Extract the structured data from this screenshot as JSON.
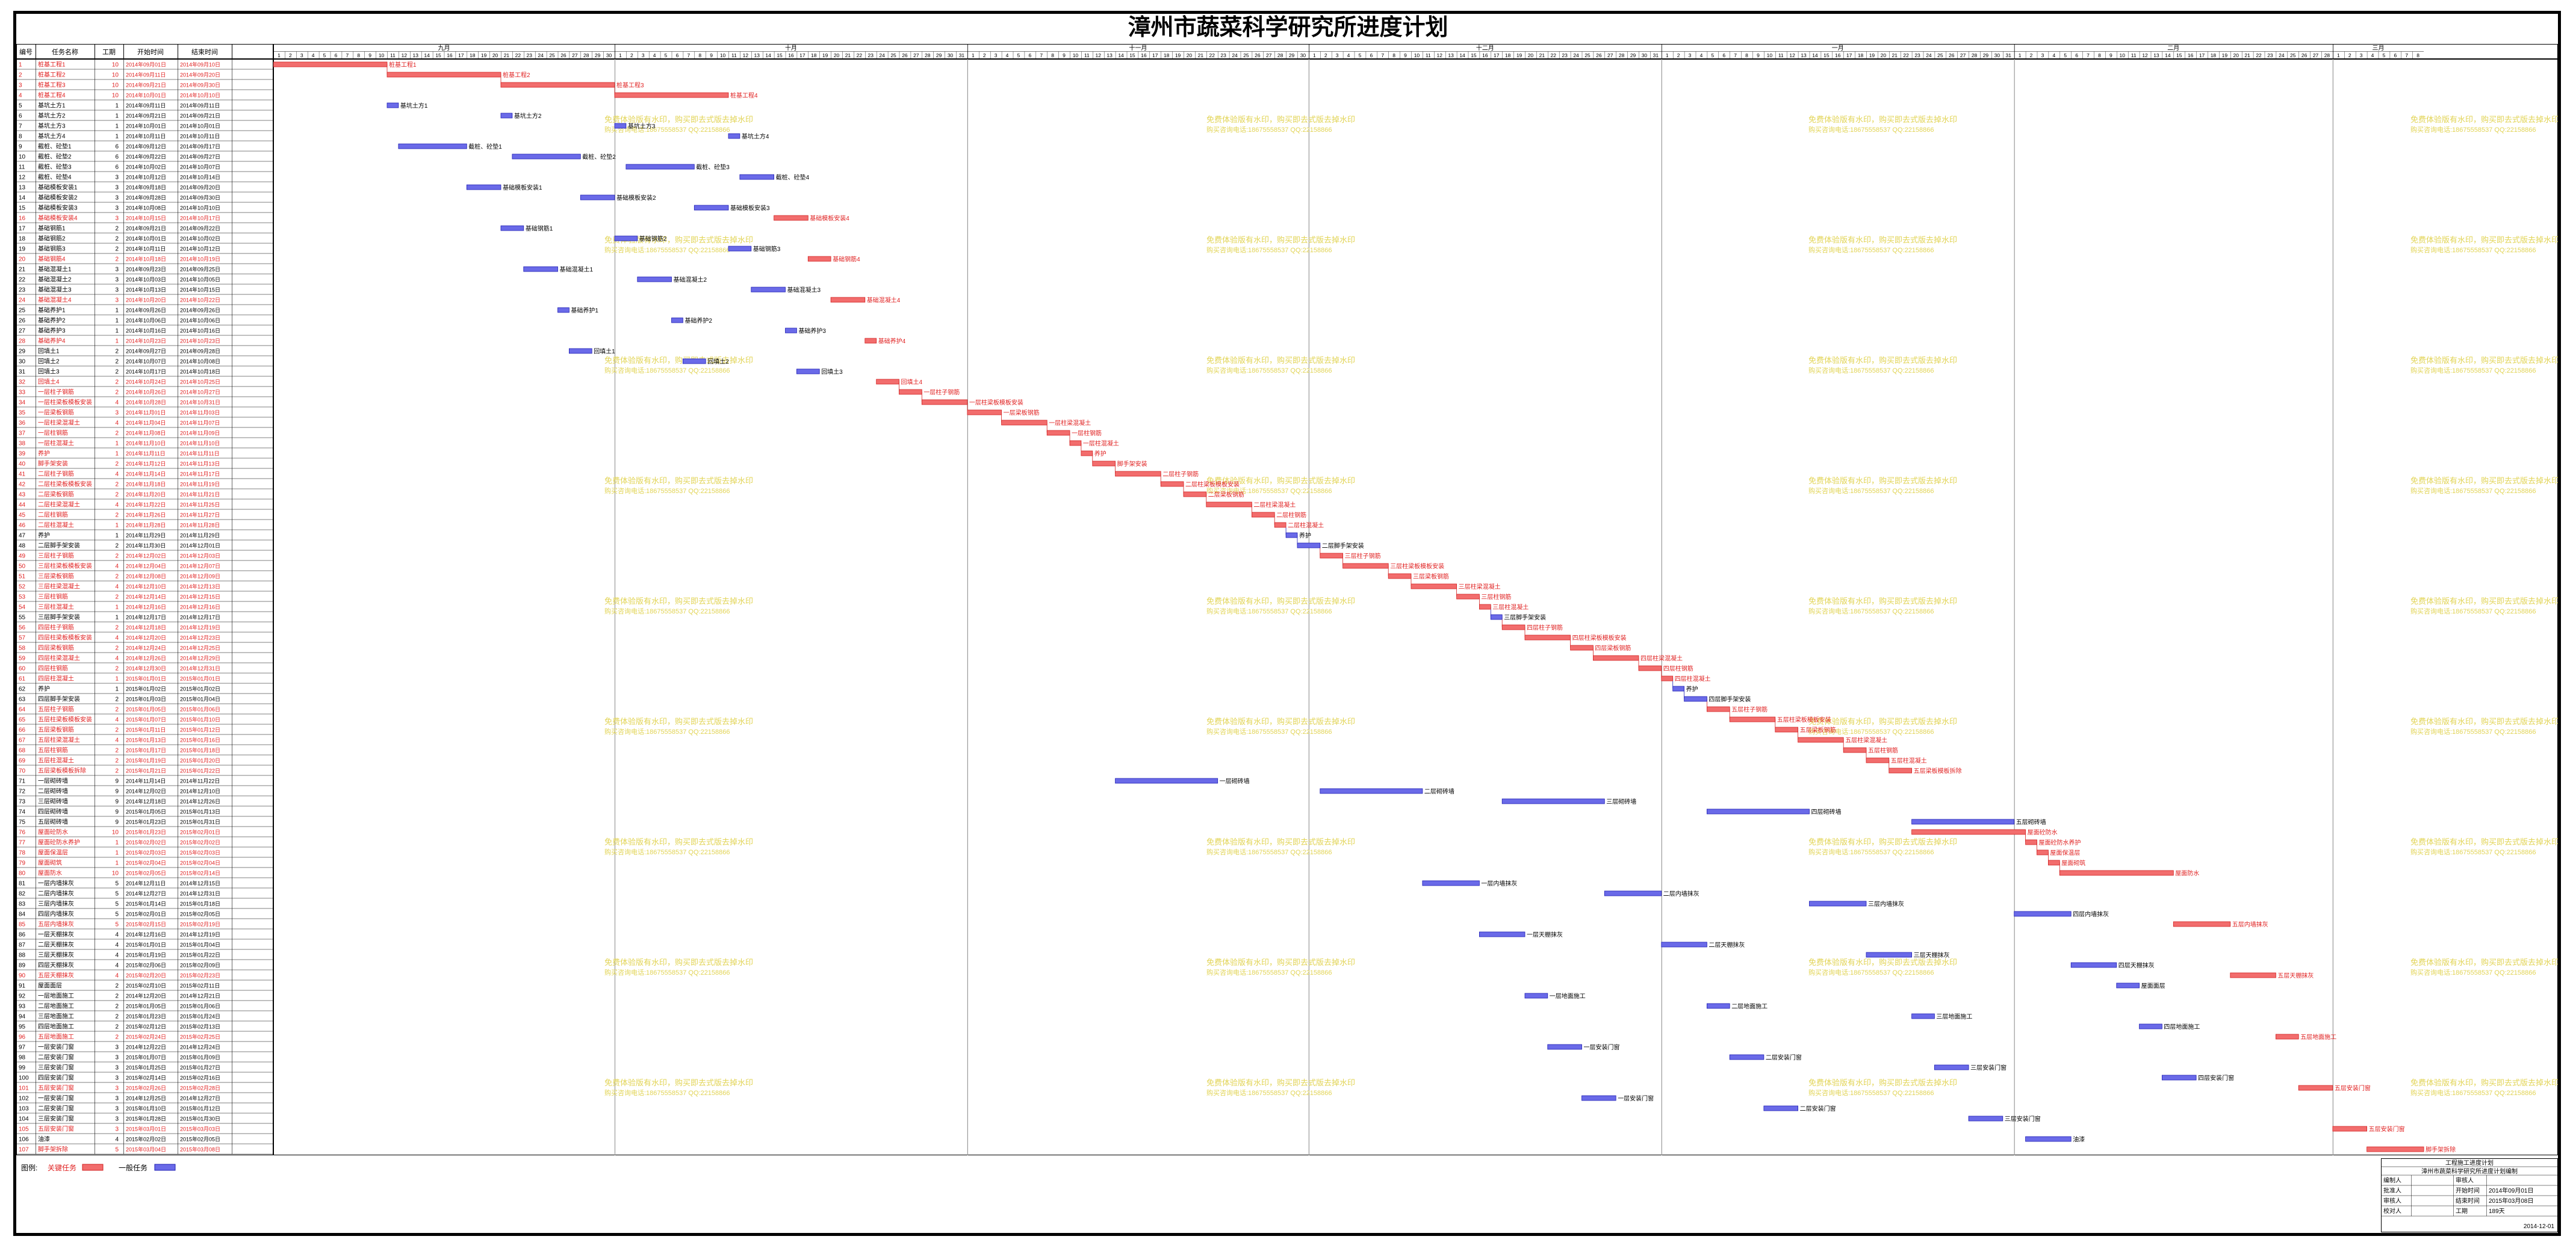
{
  "title": "漳州市蔬菜科学研究所进度计划",
  "table": {
    "columns": [
      "编号",
      "任务名称",
      "工期",
      "开始时间",
      "结束时间"
    ]
  },
  "chart_data": {
    "type": "gantt",
    "date_start": "2014-09-01",
    "months": [
      {
        "label": "九月",
        "days": 30
      },
      {
        "label": "十月",
        "days": 31
      },
      {
        "label": "十一月",
        "days": 30
      },
      {
        "label": "十二月",
        "days": 31
      },
      {
        "label": "一月",
        "days": 31
      },
      {
        "label": "二月",
        "days": 28
      },
      {
        "label": "三月",
        "days": 8
      }
    ],
    "tasks": [
      {
        "id": 1,
        "name": "桩基工程1",
        "dur": 10,
        "start": "2014年09月01日",
        "end": "2014年09月10日",
        "crit": true
      },
      {
        "id": 2,
        "name": "桩基工程2",
        "dur": 10,
        "start": "2014年09月11日",
        "end": "2014年09月20日",
        "crit": true
      },
      {
        "id": 3,
        "name": "桩基工程3",
        "dur": 10,
        "start": "2014年09月21日",
        "end": "2014年09月30日",
        "crit": true
      },
      {
        "id": 4,
        "name": "桩基工程4",
        "dur": 10,
        "start": "2014年10月01日",
        "end": "2014年10月10日",
        "crit": true
      },
      {
        "id": 5,
        "name": "基坑土方1",
        "dur": 1,
        "start": "2014年09月11日",
        "end": "2014年09月11日",
        "crit": false
      },
      {
        "id": 6,
        "name": "基坑土方2",
        "dur": 1,
        "start": "2014年09月21日",
        "end": "2014年09月21日",
        "crit": false
      },
      {
        "id": 7,
        "name": "基坑土方3",
        "dur": 1,
        "start": "2014年10月01日",
        "end": "2014年10月01日",
        "crit": false
      },
      {
        "id": 8,
        "name": "基坑土方4",
        "dur": 1,
        "start": "2014年10月11日",
        "end": "2014年10月11日",
        "crit": false
      },
      {
        "id": 9,
        "name": "截桩、砼垫1",
        "dur": 6,
        "start": "2014年09月12日",
        "end": "2014年09月17日",
        "crit": false
      },
      {
        "id": 10,
        "name": "截桩、砼垫2",
        "dur": 6,
        "start": "2014年09月22日",
        "end": "2014年09月27日",
        "crit": false
      },
      {
        "id": 11,
        "name": "截桩、砼垫3",
        "dur": 6,
        "start": "2014年10月02日",
        "end": "2014年10月07日",
        "crit": false
      },
      {
        "id": 12,
        "name": "截桩、砼垫4",
        "dur": 3,
        "start": "2014年10月12日",
        "end": "2014年10月14日",
        "crit": false
      },
      {
        "id": 13,
        "name": "基础模板安装1",
        "dur": 3,
        "start": "2014年09月18日",
        "end": "2014年09月20日",
        "crit": false
      },
      {
        "id": 14,
        "name": "基础模板安装2",
        "dur": 3,
        "start": "2014年09月28日",
        "end": "2014年09月30日",
        "crit": false
      },
      {
        "id": 15,
        "name": "基础模板安装3",
        "dur": 3,
        "start": "2014年10月08日",
        "end": "2014年10月10日",
        "crit": false
      },
      {
        "id": 16,
        "name": "基础模板安装4",
        "dur": 3,
        "start": "2014年10月15日",
        "end": "2014年10月17日",
        "crit": true
      },
      {
        "id": 17,
        "name": "基础钢筋1",
        "dur": 2,
        "start": "2014年09月21日",
        "end": "2014年09月22日",
        "crit": false
      },
      {
        "id": 18,
        "name": "基础钢筋2",
        "dur": 2,
        "start": "2014年10月01日",
        "end": "2014年10月02日",
        "crit": false
      },
      {
        "id": 19,
        "name": "基础钢筋3",
        "dur": 2,
        "start": "2014年10月11日",
        "end": "2014年10月12日",
        "crit": false
      },
      {
        "id": 20,
        "name": "基础钢筋4",
        "dur": 2,
        "start": "2014年10月18日",
        "end": "2014年10月19日",
        "crit": true
      },
      {
        "id": 21,
        "name": "基础混凝土1",
        "dur": 3,
        "start": "2014年09月23日",
        "end": "2014年09月25日",
        "crit": false
      },
      {
        "id": 22,
        "name": "基础混凝土2",
        "dur": 3,
        "start": "2014年10月03日",
        "end": "2014年10月05日",
        "crit": false
      },
      {
        "id": 23,
        "name": "基础混凝土3",
        "dur": 3,
        "start": "2014年10月13日",
        "end": "2014年10月15日",
        "crit": false
      },
      {
        "id": 24,
        "name": "基础混凝土4",
        "dur": 3,
        "start": "2014年10月20日",
        "end": "2014年10月22日",
        "crit": true
      },
      {
        "id": 25,
        "name": "基础养护1",
        "dur": 1,
        "start": "2014年09月26日",
        "end": "2014年09月26日",
        "crit": false
      },
      {
        "id": 26,
        "name": "基础养护2",
        "dur": 1,
        "start": "2014年10月06日",
        "end": "2014年10月06日",
        "crit": false
      },
      {
        "id": 27,
        "name": "基础养护3",
        "dur": 1,
        "start": "2014年10月16日",
        "end": "2014年10月16日",
        "crit": false
      },
      {
        "id": 28,
        "name": "基础养护4",
        "dur": 1,
        "start": "2014年10月23日",
        "end": "2014年10月23日",
        "crit": true
      },
      {
        "id": 29,
        "name": "回填土1",
        "dur": 2,
        "start": "2014年09月27日",
        "end": "2014年09月28日",
        "crit": false
      },
      {
        "id": 30,
        "name": "回填土2",
        "dur": 2,
        "start": "2014年10月07日",
        "end": "2014年10月08日",
        "crit": false
      },
      {
        "id": 31,
        "name": "回填土3",
        "dur": 2,
        "start": "2014年10月17日",
        "end": "2014年10月18日",
        "crit": false
      },
      {
        "id": 32,
        "name": "回填土4",
        "dur": 2,
        "start": "2014年10月24日",
        "end": "2014年10月25日",
        "crit": true
      },
      {
        "id": 33,
        "name": "一层柱子钢筋",
        "dur": 2,
        "start": "2014年10月26日",
        "end": "2014年10月27日",
        "crit": true
      },
      {
        "id": 34,
        "name": "一层柱梁板模板安装",
        "dur": 4,
        "start": "2014年10月28日",
        "end": "2014年10月31日",
        "crit": true
      },
      {
        "id": 35,
        "name": "一层梁板钢筋",
        "dur": 3,
        "start": "2014年11月01日",
        "end": "2014年11月03日",
        "crit": true
      },
      {
        "id": 36,
        "name": "一层柱梁混凝土",
        "dur": 4,
        "start": "2014年11月04日",
        "end": "2014年11月07日",
        "crit": true
      },
      {
        "id": 37,
        "name": "一层柱钢筋",
        "dur": 2,
        "start": "2014年11月08日",
        "end": "2014年11月09日",
        "crit": true
      },
      {
        "id": 38,
        "name": "一层柱混凝土",
        "dur": 1,
        "start": "2014年11月10日",
        "end": "2014年11月10日",
        "crit": true
      },
      {
        "id": 39,
        "name": "养护",
        "dur": 1,
        "start": "2014年11月11日",
        "end": "2014年11月11日",
        "crit": true
      },
      {
        "id": 40,
        "name": "脚手架安装",
        "dur": 2,
        "start": "2014年11月12日",
        "end": "2014年11月13日",
        "crit": true
      },
      {
        "id": 41,
        "name": "二层柱子钢筋",
        "dur": 4,
        "start": "2014年11月14日",
        "end": "2014年11月17日",
        "crit": true
      },
      {
        "id": 42,
        "name": "二层柱梁板模板安装",
        "dur": 2,
        "start": "2014年11月18日",
        "end": "2014年11月19日",
        "crit": true
      },
      {
        "id": 43,
        "name": "二层梁板钢筋",
        "dur": 2,
        "start": "2014年11月20日",
        "end": "2014年11月21日",
        "crit": true
      },
      {
        "id": 44,
        "name": "二层柱梁混凝土",
        "dur": 4,
        "start": "2014年11月22日",
        "end": "2014年11月25日",
        "crit": true
      },
      {
        "id": 45,
        "name": "二层柱钢筋",
        "dur": 2,
        "start": "2014年11月26日",
        "end": "2014年11月27日",
        "crit": true
      },
      {
        "id": 46,
        "name": "二层柱混凝土",
        "dur": 1,
        "start": "2014年11月28日",
        "end": "2014年11月28日",
        "crit": true
      },
      {
        "id": 47,
        "name": "养护",
        "dur": 1,
        "start": "2014年11月29日",
        "end": "2014年11月29日",
        "crit": false
      },
      {
        "id": 48,
        "name": "二层脚手架安装",
        "dur": 2,
        "start": "2014年11月30日",
        "end": "2014年12月01日",
        "crit": false
      },
      {
        "id": 49,
        "name": "三层柱子钢筋",
        "dur": 2,
        "start": "2014年12月02日",
        "end": "2014年12月03日",
        "crit": true
      },
      {
        "id": 50,
        "name": "三层柱梁板模板安装",
        "dur": 4,
        "start": "2014年12月04日",
        "end": "2014年12月07日",
        "crit": true
      },
      {
        "id": 51,
        "name": "三层梁板钢筋",
        "dur": 2,
        "start": "2014年12月08日",
        "end": "2014年12月09日",
        "crit": true
      },
      {
        "id": 52,
        "name": "三层柱梁混凝土",
        "dur": 4,
        "start": "2014年12月10日",
        "end": "2014年12月13日",
        "crit": true
      },
      {
        "id": 53,
        "name": "三层柱钢筋",
        "dur": 2,
        "start": "2014年12月14日",
        "end": "2014年12月15日",
        "crit": true
      },
      {
        "id": 54,
        "name": "三层柱混凝土",
        "dur": 1,
        "start": "2014年12月16日",
        "end": "2014年12月16日",
        "crit": true
      },
      {
        "id": 55,
        "name": "三层脚手架安装",
        "dur": 1,
        "start": "2014年12月17日",
        "end": "2014年12月17日",
        "crit": false
      },
      {
        "id": 56,
        "name": "四层柱子钢筋",
        "dur": 2,
        "start": "2014年12月18日",
        "end": "2014年12月19日",
        "crit": true
      },
      {
        "id": 57,
        "name": "四层柱梁板模板安装",
        "dur": 4,
        "start": "2014年12月20日",
        "end": "2014年12月23日",
        "crit": true
      },
      {
        "id": 58,
        "name": "四层梁板钢筋",
        "dur": 2,
        "start": "2014年12月24日",
        "end": "2014年12月25日",
        "crit": true
      },
      {
        "id": 59,
        "name": "四层柱梁混凝土",
        "dur": 4,
        "start": "2014年12月26日",
        "end": "2014年12月29日",
        "crit": true
      },
      {
        "id": 60,
        "name": "四层柱钢筋",
        "dur": 2,
        "start": "2014年12月30日",
        "end": "2014年12月31日",
        "crit": true
      },
      {
        "id": 61,
        "name": "四层柱混凝土",
        "dur": 1,
        "start": "2015年01月01日",
        "end": "2015年01月01日",
        "crit": true
      },
      {
        "id": 62,
        "name": "养护",
        "dur": 1,
        "start": "2015年01月02日",
        "end": "2015年01月02日",
        "crit": false
      },
      {
        "id": 63,
        "name": "四层脚手架安装",
        "dur": 2,
        "start": "2015年01月03日",
        "end": "2015年01月04日",
        "crit": false
      },
      {
        "id": 64,
        "name": "五层柱子钢筋",
        "dur": 2,
        "start": "2015年01月05日",
        "end": "2015年01月06日",
        "crit": true
      },
      {
        "id": 65,
        "name": "五层柱梁板模板安装",
        "dur": 4,
        "start": "2015年01月07日",
        "end": "2015年01月10日",
        "crit": true
      },
      {
        "id": 66,
        "name": "五层梁板钢筋",
        "dur": 2,
        "start": "2015年01月11日",
        "end": "2015年01月12日",
        "crit": true
      },
      {
        "id": 67,
        "name": "五层柱梁混凝土",
        "dur": 4,
        "start": "2015年01月13日",
        "end": "2015年01月16日",
        "crit": true
      },
      {
        "id": 68,
        "name": "五层柱钢筋",
        "dur": 2,
        "start": "2015年01月17日",
        "end": "2015年01月18日",
        "crit": true
      },
      {
        "id": 69,
        "name": "五层柱混凝土",
        "dur": 2,
        "start": "2015年01月19日",
        "end": "2015年01月20日",
        "crit": true
      },
      {
        "id": 70,
        "name": "五层梁板模板拆除",
        "dur": 2,
        "start": "2015年01月21日",
        "end": "2015年01月22日",
        "crit": true
      },
      {
        "id": 71,
        "name": "一层砌砖墙",
        "dur": 9,
        "start": "2014年11月14日",
        "end": "2014年11月22日",
        "crit": false
      },
      {
        "id": 72,
        "name": "二层砌砖墙",
        "dur": 9,
        "start": "2014年12月02日",
        "end": "2014年12月10日",
        "crit": false
      },
      {
        "id": 73,
        "name": "三层砌砖墙",
        "dur": 9,
        "start": "2014年12月18日",
        "end": "2014年12月26日",
        "crit": false
      },
      {
        "id": 74,
        "name": "四层砌砖墙",
        "dur": 9,
        "start": "2015年01月05日",
        "end": "2015年01月13日",
        "crit": false
      },
      {
        "id": 75,
        "name": "五层砌砖墙",
        "dur": 9,
        "start": "2015年01月23日",
        "end": "2015年01月31日",
        "crit": false
      },
      {
        "id": 76,
        "name": "屋面砼防水",
        "dur": 10,
        "start": "2015年01月23日",
        "end": "2015年02月01日",
        "crit": true
      },
      {
        "id": 77,
        "name": "屋面砼防水养护",
        "dur": 1,
        "start": "2015年02月02日",
        "end": "2015年02月02日",
        "crit": true
      },
      {
        "id": 78,
        "name": "屋面保温层",
        "dur": 1,
        "start": "2015年02月03日",
        "end": "2015年02月03日",
        "crit": true
      },
      {
        "id": 79,
        "name": "屋面砌筑",
        "dur": 1,
        "start": "2015年02月04日",
        "end": "2015年02月04日",
        "crit": true
      },
      {
        "id": 80,
        "name": "屋面防水",
        "dur": 10,
        "start": "2015年02月05日",
        "end": "2015年02月14日",
        "crit": true
      },
      {
        "id": 81,
        "name": "一层内墙抹灰",
        "dur": 5,
        "start": "2014年12月11日",
        "end": "2014年12月15日",
        "crit": false
      },
      {
        "id": 82,
        "name": "二层内墙抹灰",
        "dur": 5,
        "start": "2014年12月27日",
        "end": "2014年12月31日",
        "crit": false
      },
      {
        "id": 83,
        "name": "三层内墙抹灰",
        "dur": 5,
        "start": "2015年01月14日",
        "end": "2015年01月18日",
        "crit": false
      },
      {
        "id": 84,
        "name": "四层内墙抹灰",
        "dur": 5,
        "start": "2015年02月01日",
        "end": "2015年02月05日",
        "crit": false
      },
      {
        "id": 85,
        "name": "五层内墙抹灰",
        "dur": 5,
        "start": "2015年02月15日",
        "end": "2015年02月19日",
        "crit": true
      },
      {
        "id": 86,
        "name": "一层天棚抹灰",
        "dur": 4,
        "start": "2014年12月16日",
        "end": "2014年12月19日",
        "crit": false
      },
      {
        "id": 87,
        "name": "二层天棚抹灰",
        "dur": 4,
        "start": "2015年01月01日",
        "end": "2015年01月04日",
        "crit": false
      },
      {
        "id": 88,
        "name": "三层天棚抹灰",
        "dur": 4,
        "start": "2015年01月19日",
        "end": "2015年01月22日",
        "crit": false
      },
      {
        "id": 89,
        "name": "四层天棚抹灰",
        "dur": 4,
        "start": "2015年02月06日",
        "end": "2015年02月09日",
        "crit": false
      },
      {
        "id": 90,
        "name": "五层天棚抹灰",
        "dur": 4,
        "start": "2015年02月20日",
        "end": "2015年02月23日",
        "crit": true
      },
      {
        "id": 91,
        "name": "屋面面层",
        "dur": 2,
        "start": "2015年02月10日",
        "end": "2015年02月11日",
        "crit": false
      },
      {
        "id": 92,
        "name": "一层地面施工",
        "dur": 2,
        "start": "2014年12月20日",
        "end": "2014年12月21日",
        "crit": false
      },
      {
        "id": 93,
        "name": "二层地面施工",
        "dur": 2,
        "start": "2015年01月05日",
        "end": "2015年01月06日",
        "crit": false
      },
      {
        "id": 94,
        "name": "三层地面施工",
        "dur": 2,
        "start": "2015年01月23日",
        "end": "2015年01月24日",
        "crit": false
      },
      {
        "id": 95,
        "name": "四层地面施工",
        "dur": 2,
        "start": "2015年02月12日",
        "end": "2015年02月13日",
        "crit": false
      },
      {
        "id": 96,
        "name": "五层地面施工",
        "dur": 2,
        "start": "2015年02月24日",
        "end": "2015年02月25日",
        "crit": true
      },
      {
        "id": 97,
        "name": "一层安装门窗",
        "dur": 3,
        "start": "2014年12月22日",
        "end": "2014年12月24日",
        "crit": false
      },
      {
        "id": 98,
        "name": "二层安装门窗",
        "dur": 3,
        "start": "2015年01月07日",
        "end": "2015年01月09日",
        "crit": false
      },
      {
        "id": 99,
        "name": "三层安装门窗",
        "dur": 3,
        "start": "2015年01月25日",
        "end": "2015年01月27日",
        "crit": false
      },
      {
        "id": 100,
        "name": "四层安装门窗",
        "dur": 3,
        "start": "2015年02月14日",
        "end": "2015年02月16日",
        "crit": false
      },
      {
        "id": 101,
        "name": "五层安装门窗",
        "dur": 3,
        "start": "2015年02月26日",
        "end": "2015年02月28日",
        "crit": true
      },
      {
        "id": 102,
        "name": "一层安装门窗",
        "dur": 3,
        "start": "2014年12月25日",
        "end": "2014年12月27日",
        "crit": false
      },
      {
        "id": 103,
        "name": "二层安装门窗",
        "dur": 3,
        "start": "2015年01月10日",
        "end": "2015年01月12日",
        "crit": false
      },
      {
        "id": 104,
        "name": "三层安装门窗",
        "dur": 3,
        "start": "2015年01月28日",
        "end": "2015年01月30日",
        "crit": false
      },
      {
        "id": 105,
        "name": "五层安装门窗",
        "dur": 3,
        "start": "2015年03月01日",
        "end": "2015年03月03日",
        "crit": true
      },
      {
        "id": 106,
        "name": "油漆",
        "dur": 4,
        "start": "2015年02月02日",
        "end": "2015年02月05日",
        "crit": false
      },
      {
        "id": 107,
        "name": "脚手架拆除",
        "dur": 5,
        "start": "2015年03月04日",
        "end": "2015年03月08日",
        "crit": true
      }
    ]
  },
  "watermark": {
    "line1": "免费体验版有水印，购买即去式版去掉水印",
    "line2": "购买咨询电话:18675558537 QQ:22158866"
  },
  "legend": {
    "label": "图例:",
    "critical": "关键任务",
    "normal": "一般任务"
  },
  "title_block": {
    "header": "工程施工进度计划",
    "subtitle": "漳州市蔬菜科学研究所进度计划编制",
    "rows": [
      [
        "编制人",
        "",
        "审核人",
        ""
      ],
      [
        "批准人",
        "",
        "开始时间",
        "2014年09月01日"
      ],
      [
        "审核人",
        "",
        "结束时间",
        "2015年03月08日"
      ],
      [
        "校对人",
        "",
        "工期",
        "189天"
      ]
    ],
    "date": "2014-12-01"
  },
  "colors": {
    "critical": "#f26d6d",
    "critical_edge": "#d22020",
    "normal": "#6a6ae8",
    "normal_edge": "#1e1eb4",
    "critical_text": "#e02020",
    "watermark": "#e2d455"
  }
}
